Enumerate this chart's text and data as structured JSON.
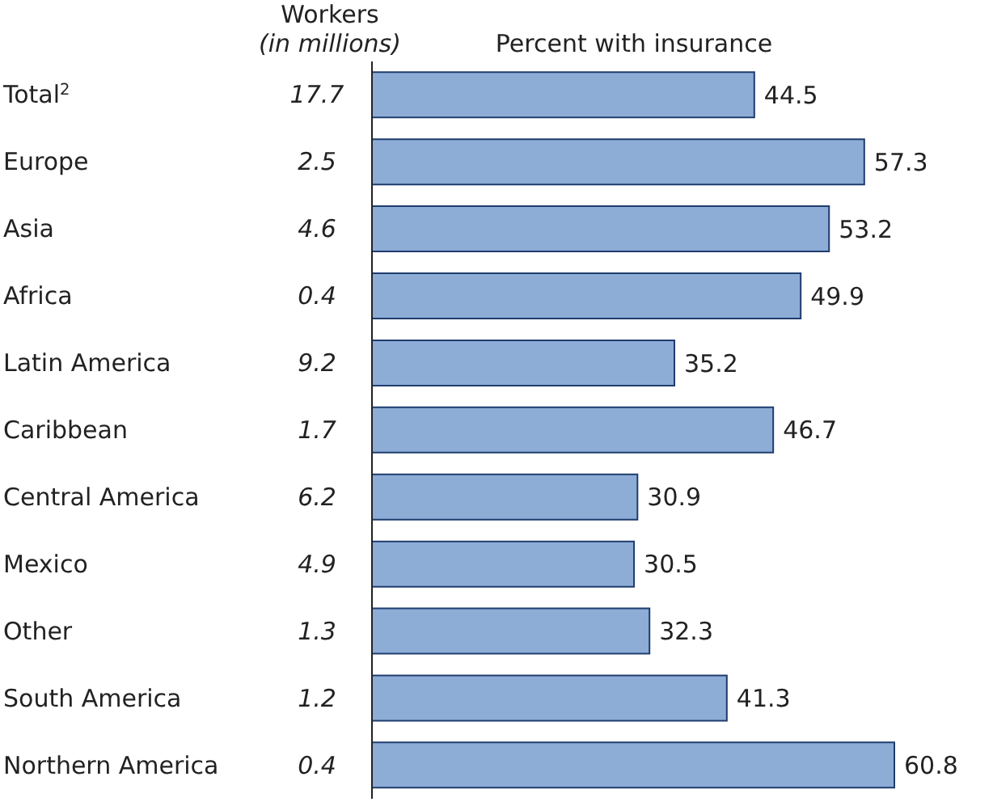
{
  "chart_data": {
    "type": "bar",
    "orientation": "horizontal",
    "xlabel": "Percent with insurance",
    "ylabel": "Workers",
    "categories": [
      "Total$^{2}$",
      "Europe",
      "Asia",
      "Africa",
      "Latin America",
      "Caribbean",
      "Central America",
      "Mexico",
      "Other",
      "South America",
      "Northern America"
    ],
    "values": [
      44.5,
      57.3,
      53.2,
      49.9,
      35.2,
      46.7,
      30.9,
      30.5,
      32.3,
      41.3,
      60.8
    ],
    "color": "#8eadd6",
    "data_labels": true,
    "tick_labels": "y",
    "annotations": [
      "(in millions)",
      "17.7",
      "2.5",
      "4.6",
      "0.4",
      "9.2",
      "1.7",
      "6.2",
      "4.9",
      "1.3",
      "1.2",
      "0.4"
    ]
  }
}
